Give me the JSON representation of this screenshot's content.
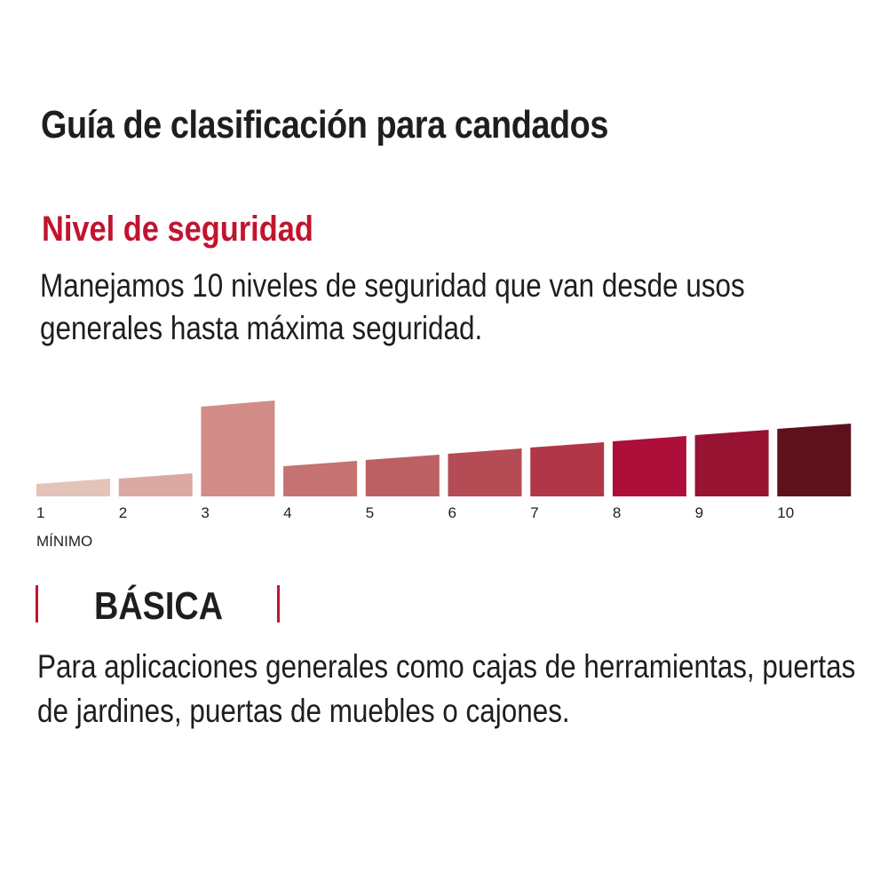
{
  "title": "Guía de clasificación para candados",
  "subtitle": "Nivel de seguridad",
  "intro": "Manejamos 10 niveles de seguridad que van desde usos generales hasta máxima seguridad.",
  "chart_data": {
    "type": "bar",
    "categories": [
      "1",
      "2",
      "3",
      "4",
      "5",
      "6",
      "7",
      "8",
      "9",
      "10"
    ],
    "highlighted_level": 3,
    "min_label": "MÍNIMO",
    "colors": [
      "#e4c3b8",
      "#dba9a4",
      "#d18c88",
      "#c57272",
      "#bd6063",
      "#b54b55",
      "#b13748",
      "#ae0e3a",
      "#981332",
      "#5e111d"
    ]
  },
  "category": {
    "label": "BÁSICA",
    "accent": "#c1142f"
  },
  "description": "Para aplicaciones generales como cajas de herramientas, puertas de jardines, puertas de muebles o cajones."
}
